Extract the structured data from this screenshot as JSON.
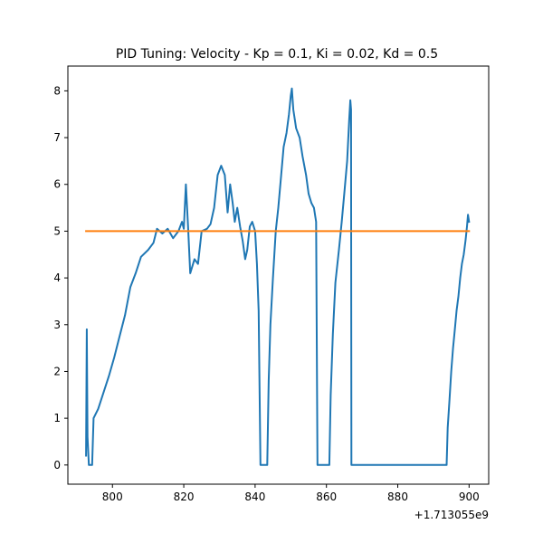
{
  "chart_data": {
    "type": "line",
    "title": "PID Tuning: Velocity - Kp = 0.1, Ki = 0.02, Kd = 0.5",
    "xlabel": "",
    "ylabel": "",
    "x_offset_label": "+1.713055e9",
    "xlim": [
      787.5,
      905.5
    ],
    "ylim": [
      -0.41,
      8.53
    ],
    "x_ticks": [
      800,
      820,
      840,
      860,
      880,
      900
    ],
    "x_tick_labels": [
      "800",
      "820",
      "840",
      "860",
      "880",
      "900"
    ],
    "y_ticks": [
      0,
      1,
      2,
      3,
      4,
      5,
      6,
      7,
      8
    ],
    "y_tick_labels": [
      "0",
      "1",
      "2",
      "3",
      "4",
      "5",
      "6",
      "7",
      "8"
    ],
    "grid": false,
    "series": [
      {
        "color": "#1f77b4",
        "points": [
          [
            792.6,
            0.2
          ],
          [
            792.8,
            2.9
          ],
          [
            793.0,
            0.6
          ],
          [
            793.4,
            0.0
          ],
          [
            794.3,
            0.0
          ],
          [
            794.7,
            1.0
          ],
          [
            796.0,
            1.2
          ],
          [
            797.5,
            1.55
          ],
          [
            799.0,
            1.9
          ],
          [
            800.5,
            2.3
          ],
          [
            802.0,
            2.75
          ],
          [
            803.5,
            3.2
          ],
          [
            805.0,
            3.8
          ],
          [
            806.5,
            4.1
          ],
          [
            808.0,
            4.45
          ],
          [
            810.0,
            4.6
          ],
          [
            811.5,
            4.75
          ],
          [
            812.5,
            5.05
          ],
          [
            814.0,
            4.95
          ],
          [
            815.5,
            5.05
          ],
          [
            817.0,
            4.85
          ],
          [
            818.5,
            5.0
          ],
          [
            819.5,
            5.2
          ],
          [
            820.0,
            5.05
          ],
          [
            820.6,
            6.0
          ],
          [
            821.2,
            5.1
          ],
          [
            821.8,
            4.1
          ],
          [
            823.0,
            4.4
          ],
          [
            824.0,
            4.3
          ],
          [
            825.0,
            5.0
          ],
          [
            826.5,
            5.05
          ],
          [
            827.5,
            5.15
          ],
          [
            828.5,
            5.5
          ],
          [
            829.5,
            6.2
          ],
          [
            830.5,
            6.4
          ],
          [
            831.5,
            6.2
          ],
          [
            832.3,
            5.4
          ],
          [
            833.0,
            6.0
          ],
          [
            833.7,
            5.6
          ],
          [
            834.3,
            5.2
          ],
          [
            835.0,
            5.5
          ],
          [
            835.8,
            5.1
          ],
          [
            836.5,
            4.8
          ],
          [
            837.2,
            4.4
          ],
          [
            837.8,
            4.6
          ],
          [
            838.5,
            5.1
          ],
          [
            839.2,
            5.2
          ],
          [
            840.0,
            5.0
          ],
          [
            840.5,
            4.3
          ],
          [
            841.0,
            3.3
          ],
          [
            841.5,
            0.0
          ],
          [
            843.4,
            0.0
          ],
          [
            843.8,
            1.8
          ],
          [
            844.3,
            3.0
          ],
          [
            845.0,
            4.0
          ],
          [
            845.8,
            5.0
          ],
          [
            846.5,
            5.5
          ],
          [
            847.3,
            6.2
          ],
          [
            848.0,
            6.8
          ],
          [
            848.8,
            7.1
          ],
          [
            849.5,
            7.5
          ],
          [
            850.0,
            7.9
          ],
          [
            850.3,
            8.05
          ],
          [
            850.7,
            7.6
          ],
          [
            851.5,
            7.2
          ],
          [
            852.5,
            7.0
          ],
          [
            853.3,
            6.6
          ],
          [
            854.3,
            6.2
          ],
          [
            855.0,
            5.8
          ],
          [
            855.8,
            5.6
          ],
          [
            856.5,
            5.5
          ],
          [
            857.1,
            5.2
          ],
          [
            857.5,
            0.0
          ],
          [
            860.8,
            0.0
          ],
          [
            861.2,
            1.5
          ],
          [
            861.8,
            2.8
          ],
          [
            862.5,
            3.9
          ],
          [
            863.5,
            4.6
          ],
          [
            864.3,
            5.2
          ],
          [
            865.0,
            5.8
          ],
          [
            865.8,
            6.5
          ],
          [
            866.4,
            7.4
          ],
          [
            866.7,
            7.8
          ],
          [
            866.9,
            7.6
          ],
          [
            867.0,
            0.0
          ],
          [
            893.7,
            0.0
          ],
          [
            894.0,
            0.8
          ],
          [
            894.5,
            1.4
          ],
          [
            895.0,
            2.0
          ],
          [
            895.5,
            2.5
          ],
          [
            896.0,
            2.9
          ],
          [
            896.5,
            3.3
          ],
          [
            897.0,
            3.6
          ],
          [
            897.5,
            4.0
          ],
          [
            898.0,
            4.3
          ],
          [
            898.5,
            4.5
          ],
          [
            899.0,
            4.8
          ],
          [
            899.4,
            5.1
          ],
          [
            899.7,
            5.35
          ],
          [
            900.0,
            5.2
          ]
        ]
      },
      {
        "color": "#ff7f0e",
        "points": [
          [
            792.6,
            5.0
          ],
          [
            900.0,
            5.0
          ]
        ]
      }
    ]
  }
}
